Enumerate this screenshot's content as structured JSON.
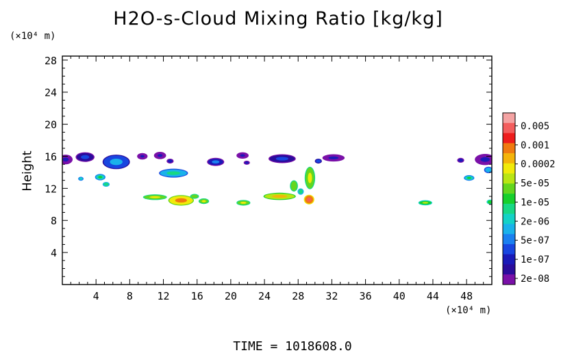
{
  "title": "H2O-s-Cloud Mixing Ratio [kg/kg]",
  "x_unit": "(×10⁴ m)",
  "y_unit": "(×10⁴ m)",
  "time_label": "TIME  =  1018608.0",
  "chart_data": {
    "type": "heatmap",
    "title": "H2O-s-Cloud Mixing Ratio [kg/kg]",
    "xlabel": "",
    "ylabel": "Height",
    "x_unit": "×10⁴ m",
    "y_unit": "×10⁴ m",
    "xlim": [
      0,
      51
    ],
    "ylim": [
      0,
      28.5
    ],
    "xticks": [
      4,
      8,
      12,
      16,
      20,
      24,
      28,
      32,
      36,
      40,
      44,
      48
    ],
    "yticks": [
      4,
      8,
      12,
      16,
      20,
      24,
      28
    ],
    "colorbar": {
      "labels": [
        "0.005",
        "0.001",
        "0.0002",
        "5e-05",
        "1e-05",
        "2e-06",
        "5e-07",
        "1e-07",
        "2e-08"
      ],
      "colors": [
        "#f4a3a3",
        "#f35d5d",
        "#ee1c1c",
        "#f07a10",
        "#f4b40a",
        "#f1ea0a",
        "#b9e514",
        "#64d61e",
        "#17d02c",
        "#18d884",
        "#14d2c6",
        "#1ab2ea",
        "#1a80f0",
        "#1846e0",
        "#1a1ab8",
        "#2a0c9c",
        "#7a10a8"
      ]
    },
    "cloud_patches": [
      {
        "x": 0.4,
        "y": 15.6,
        "rx": 0.7,
        "ry": 0.5,
        "level": 16
      },
      {
        "x": 2.7,
        "y": 15.9,
        "rx": 1.0,
        "ry": 0.5,
        "level": 15
      },
      {
        "x": 6.4,
        "y": 15.3,
        "rx": 1.5,
        "ry": 0.8,
        "level": 13
      },
      {
        "x": 9.5,
        "y": 16.0,
        "rx": 0.5,
        "ry": 0.3,
        "level": 16
      },
      {
        "x": 11.6,
        "y": 16.1,
        "rx": 0.6,
        "ry": 0.35,
        "level": 16
      },
      {
        "x": 13.2,
        "y": 13.9,
        "rx": 1.6,
        "ry": 0.45,
        "level": 11
      },
      {
        "x": 18.2,
        "y": 15.3,
        "rx": 0.9,
        "ry": 0.4,
        "level": 14
      },
      {
        "x": 21.4,
        "y": 16.1,
        "rx": 0.6,
        "ry": 0.3,
        "level": 16
      },
      {
        "x": 26.1,
        "y": 15.7,
        "rx": 1.5,
        "ry": 0.45,
        "level": 15
      },
      {
        "x": 32.2,
        "y": 15.8,
        "rx": 1.2,
        "ry": 0.35,
        "level": 16
      },
      {
        "x": 50.2,
        "y": 15.6,
        "rx": 1.1,
        "ry": 0.6,
        "level": 16
      },
      {
        "x": 4.5,
        "y": 13.4,
        "rx": 0.5,
        "ry": 0.3,
        "level": 10
      },
      {
        "x": 5.2,
        "y": 12.5,
        "rx": 0.3,
        "ry": 0.2,
        "level": 9
      },
      {
        "x": 2.2,
        "y": 13.2,
        "rx": 0.2,
        "ry": 0.15,
        "level": 10
      },
      {
        "x": 14.1,
        "y": 10.5,
        "rx": 1.4,
        "ry": 0.55,
        "level": 5
      },
      {
        "x": 11.0,
        "y": 10.9,
        "rx": 1.3,
        "ry": 0.25,
        "level": 7
      },
      {
        "x": 15.7,
        "y": 11.0,
        "rx": 0.4,
        "ry": 0.2,
        "level": 7
      },
      {
        "x": 16.8,
        "y": 10.4,
        "rx": 0.5,
        "ry": 0.25,
        "level": 7
      },
      {
        "x": 21.5,
        "y": 10.2,
        "rx": 0.7,
        "ry": 0.25,
        "level": 7
      },
      {
        "x": 25.8,
        "y": 11.0,
        "rx": 1.8,
        "ry": 0.35,
        "level": 6
      },
      {
        "x": 27.5,
        "y": 12.3,
        "rx": 0.35,
        "ry": 0.6,
        "level": 7
      },
      {
        "x": 29.4,
        "y": 13.3,
        "rx": 0.5,
        "ry": 1.3,
        "level": 7
      },
      {
        "x": 29.3,
        "y": 10.6,
        "rx": 0.5,
        "ry": 0.5,
        "level": 3
      },
      {
        "x": 28.3,
        "y": 11.6,
        "rx": 0.25,
        "ry": 0.3,
        "level": 9
      },
      {
        "x": 43.1,
        "y": 10.2,
        "rx": 0.7,
        "ry": 0.22,
        "level": 8
      },
      {
        "x": 50.8,
        "y": 10.3,
        "rx": 0.3,
        "ry": 0.2,
        "level": 8
      },
      {
        "x": 48.3,
        "y": 13.3,
        "rx": 0.5,
        "ry": 0.25,
        "level": 10
      },
      {
        "x": 50.6,
        "y": 14.3,
        "rx": 0.4,
        "ry": 0.3,
        "level": 11
      },
      {
        "x": 47.3,
        "y": 15.5,
        "rx": 0.3,
        "ry": 0.2,
        "level": 14
      },
      {
        "x": 12.8,
        "y": 15.4,
        "rx": 0.3,
        "ry": 0.2,
        "level": 14
      },
      {
        "x": 21.9,
        "y": 15.2,
        "rx": 0.25,
        "ry": 0.15,
        "level": 14
      },
      {
        "x": 30.4,
        "y": 15.4,
        "rx": 0.3,
        "ry": 0.2,
        "level": 13
      }
    ]
  }
}
